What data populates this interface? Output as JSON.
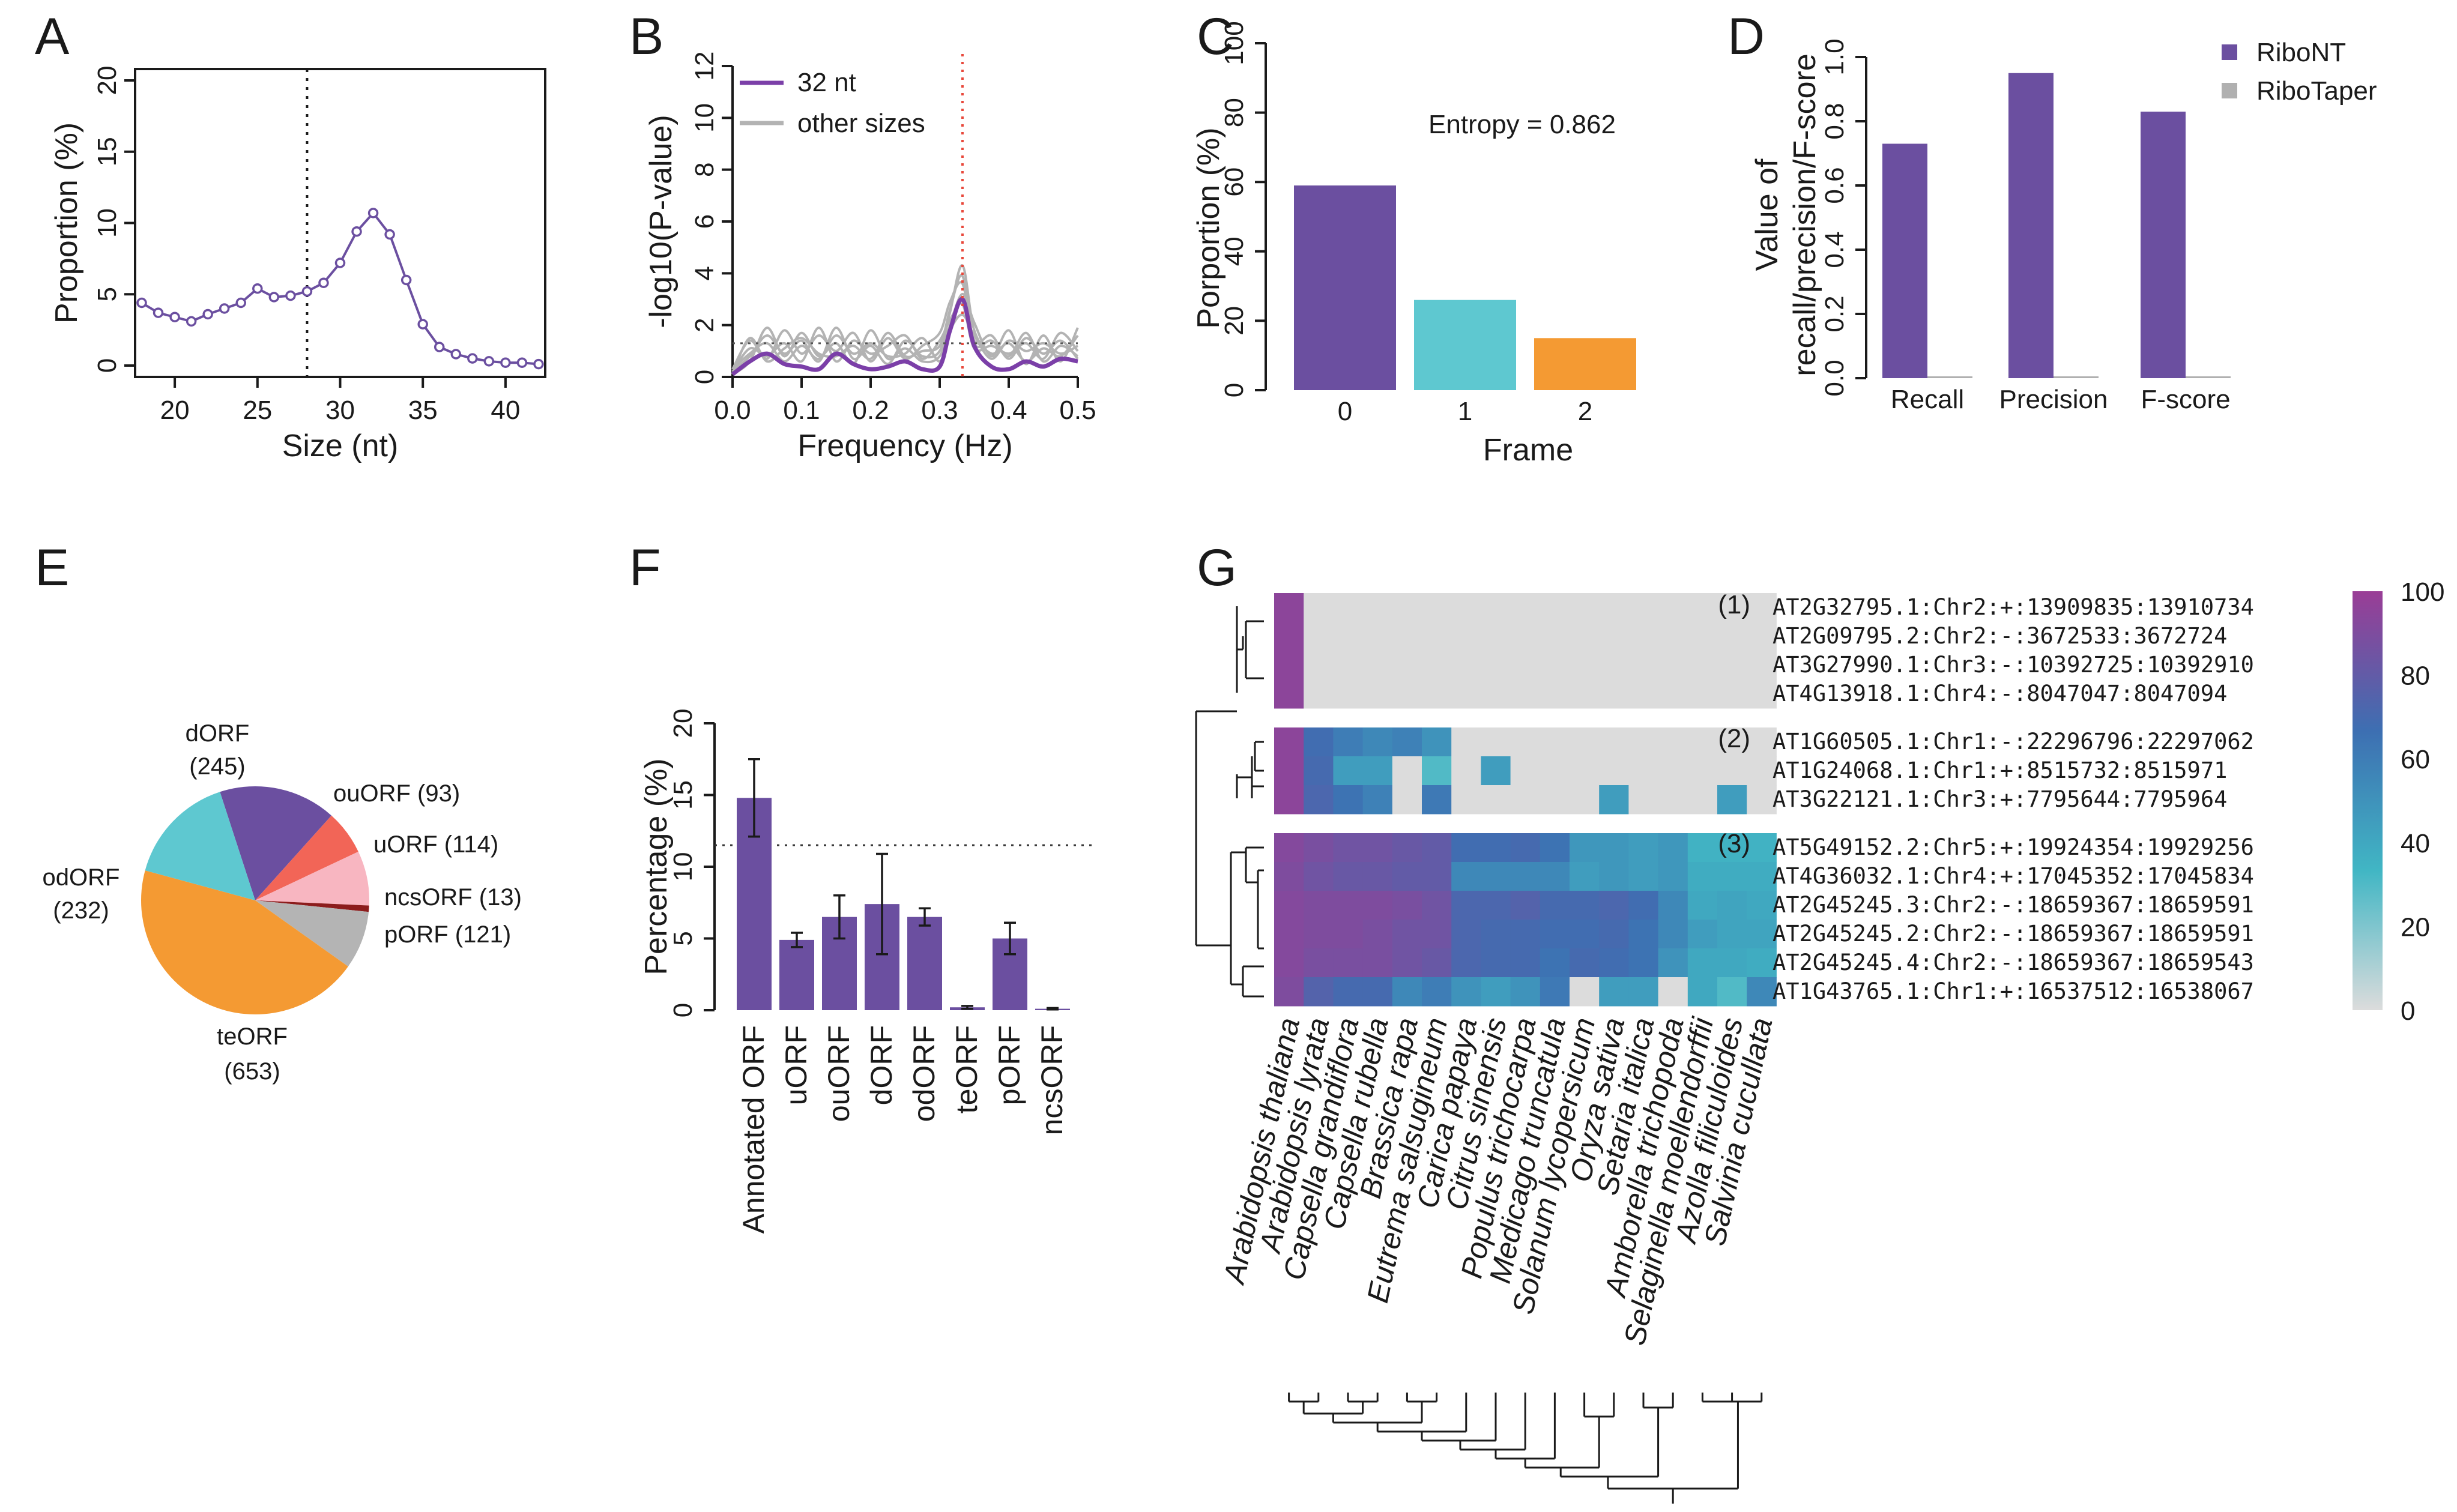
{
  "panel_letters": [
    "A",
    "B",
    "C",
    "D",
    "E",
    "F",
    "G"
  ],
  "chart_data": [
    {
      "panel": "A",
      "type": "line",
      "xlabel": "Size (nt)",
      "ylabel": "Proportion (%)",
      "xlim": [
        18,
        42
      ],
      "ylim": [
        0,
        20
      ],
      "xticks": [
        "20",
        "25",
        "30",
        "35",
        "40"
      ],
      "yticks": [
        "0",
        "5",
        "10",
        "15",
        "20"
      ],
      "x": [
        18,
        19,
        20,
        21,
        22,
        23,
        24,
        25,
        26,
        27,
        28,
        29,
        30,
        31,
        32,
        33,
        34,
        35,
        36,
        37,
        38,
        39,
        40,
        41,
        42
      ],
      "values": [
        4.4,
        3.7,
        3.4,
        3.1,
        3.6,
        4.0,
        4.4,
        5.4,
        4.8,
        4.9,
        5.2,
        5.8,
        7.2,
        9.4,
        10.7,
        9.2,
        6.0,
        2.9,
        1.3,
        0.8,
        0.5,
        0.3,
        0.2,
        0.2,
        0.1
      ],
      "vline": 28,
      "color": "#6b4fa0"
    },
    {
      "panel": "B",
      "type": "line",
      "xlabel": "Frequency (Hz)",
      "ylabel": "-log10(P-value)",
      "xlim": [
        0,
        0.5
      ],
      "ylim": [
        0,
        12
      ],
      "xticks": [
        "0.0",
        "0.1",
        "0.2",
        "0.3",
        "0.4",
        "0.5"
      ],
      "yticks": [
        "0",
        "2",
        "4",
        "6",
        "8",
        "10",
        "12"
      ],
      "legend": [
        "32 nt",
        "other sizes"
      ],
      "main_series": {
        "name": "32 nt",
        "x": [
          0.0,
          0.025,
          0.05,
          0.075,
          0.1,
          0.125,
          0.15,
          0.175,
          0.2,
          0.225,
          0.25,
          0.275,
          0.3,
          0.315,
          0.333,
          0.35,
          0.375,
          0.4,
          0.425,
          0.45,
          0.475,
          0.5
        ],
        "values": [
          0.1,
          0.6,
          0.9,
          0.5,
          0.4,
          0.3,
          0.9,
          0.5,
          0.3,
          0.4,
          0.6,
          0.3,
          0.4,
          1.8,
          3.0,
          1.2,
          0.4,
          0.3,
          0.6,
          0.4,
          0.7,
          0.6
        ]
      },
      "other_series": [
        {
          "values": [
            0.2,
            0.8,
            1.6,
            0.9,
            1.4,
            0.6,
            1.9,
            0.7,
            1.2,
            0.5,
            1.4,
            0.8,
            1.0,
            2.5,
            4.3,
            1.8,
            0.9,
            1.3,
            0.6,
            1.1,
            0.8,
            1.6
          ]
        },
        {
          "values": [
            0.3,
            1.4,
            0.7,
            1.8,
            0.9,
            1.6,
            1.0,
            1.7,
            0.6,
            1.5,
            0.7,
            1.2,
            1.7,
            2.9,
            3.6,
            1.4,
            1.6,
            0.7,
            1.5,
            0.9,
            1.4,
            0.7
          ]
        },
        {
          "values": [
            0.1,
            0.6,
            1.9,
            0.8,
            1.7,
            0.8,
            1.3,
            0.5,
            1.8,
            0.7,
            1.1,
            0.6,
            0.8,
            2.0,
            3.2,
            2.1,
            0.8,
            1.8,
            0.5,
            1.6,
            0.6,
            1.9
          ]
        },
        {
          "values": [
            0.2,
            1.1,
            0.8,
            1.3,
            0.6,
            1.9,
            0.6,
            1.4,
            0.9,
            1.2,
            1.6,
            0.7,
            1.4,
            2.2,
            2.8,
            1.1,
            1.2,
            0.9,
            1.3,
            0.7,
            1.7,
            1.0
          ]
        },
        {
          "values": [
            0.3,
            0.9,
            1.3,
            0.6,
            1.2,
            0.7,
            1.6,
            0.9,
            1.3,
            0.8,
            0.9,
            1.5,
            0.6,
            1.8,
            2.4,
            1.6,
            0.7,
            1.4,
            1.0,
            1.3,
            0.9,
            1.2
          ]
        },
        {
          "values": [
            0.1,
            1.5,
            0.6,
            1.1,
            1.5,
            0.9,
            0.8,
            1.2,
            0.7,
            1.7,
            0.8,
            1.0,
            1.2,
            2.6,
            3.9,
            1.3,
            1.4,
            0.8,
            1.7,
            0.6,
            1.2,
            0.8
          ]
        }
      ],
      "hline": 1.3,
      "vline": 0.333,
      "colors": {
        "main": "#7b3fa8",
        "other": "#b3b3b3",
        "vline": "#e8483b"
      }
    },
    {
      "panel": "C",
      "type": "bar",
      "xlabel": "Frame",
      "ylabel": "Porportion (%)",
      "categories": [
        "0",
        "1",
        "2"
      ],
      "values": [
        59,
        26,
        15
      ],
      "ylim": [
        0,
        100
      ],
      "yticks": [
        "0",
        "20",
        "40",
        "60",
        "80",
        "100"
      ],
      "annotation": "Entropy = 0.862",
      "colors": [
        "#6b4fa0",
        "#5ec8d0",
        "#f49a33"
      ]
    },
    {
      "panel": "D",
      "type": "bar",
      "ylabel_line1": "Value of",
      "ylabel_line2": "recall/precision/F-score",
      "categories": [
        "Recall",
        "Precision",
        "F-score"
      ],
      "series": [
        {
          "name": "RiboNT",
          "values": [
            0.73,
            0.95,
            0.83
          ],
          "color": "#6b4fa0"
        },
        {
          "name": "RiboTaper",
          "values": [
            0.0,
            0.0,
            0.0
          ],
          "color": "#b0b0b0"
        }
      ],
      "ylim": [
        0,
        1.0
      ],
      "yticks": [
        "0.0",
        "0.2",
        "0.4",
        "0.6",
        "0.8",
        "1.0"
      ],
      "legend": [
        "RiboNT",
        "RiboTaper"
      ]
    },
    {
      "panel": "E",
      "type": "pie",
      "slices": [
        {
          "label": "dORF",
          "count": "(245)",
          "value": 245,
          "color": "#6b4fa0"
        },
        {
          "label": "ouORF",
          "count": "(93)",
          "value": 93,
          "color": "#f26557"
        },
        {
          "label": "uORF",
          "count": "(114)",
          "value": 114,
          "color": "#f8b6c1"
        },
        {
          "label": "ncsORF",
          "count": "(13)",
          "value": 13,
          "color": "#8c1c1c"
        },
        {
          "label": "pORF",
          "count": "(121)",
          "value": 121,
          "color": "#b4b4b4"
        },
        {
          "label": "teORF",
          "count": "(653)",
          "value": 653,
          "color": "#f49a33"
        },
        {
          "label": "odORF",
          "count": "(232)",
          "value": 232,
          "color": "#5ec8d0"
        }
      ]
    },
    {
      "panel": "F",
      "type": "bar",
      "ylabel": "Percentage (%)",
      "categories": [
        "Annotated ORF",
        "uORF",
        "ouORF",
        "dORF",
        "odORF",
        "teORF",
        "pORF",
        "ncsORF"
      ],
      "values": [
        14.8,
        4.9,
        6.5,
        7.4,
        6.5,
        0.2,
        5.0,
        0.1
      ],
      "errors": [
        2.7,
        0.5,
        1.5,
        3.5,
        0.6,
        0.1,
        1.1,
        0.05
      ],
      "hline": 11.5,
      "ylim": [
        0,
        20
      ],
      "yticks": [
        "0",
        "5",
        "10",
        "15",
        "20"
      ],
      "color": "#6b4fa0"
    },
    {
      "panel": "G",
      "type": "heatmap",
      "rows": [
        "AT2G32795.1:Chr2:+:13909835:13910734",
        "AT2G09795.2:Chr2:-:3672533:3672724",
        "AT3G27990.1:Chr3:-:10392725:10392910",
        "AT4G13918.1:Chr4:-:8047047:8047094",
        "AT1G60505.1:Chr1:-:22296796:22297062",
        "AT1G24068.1:Chr1:+:8515732:8515971",
        "AT3G22121.1:Chr3:+:7795644:7795964",
        "AT5G49152.2:Chr5:+:19924354:19929256",
        "AT4G36032.1:Chr4:+:17045352:17045834",
        "AT2G45245.3:Chr2:-:18659367:18659591",
        "AT2G45245.2:Chr2:-:18659367:18659591",
        "AT2G45245.4:Chr2:-:18659367:18659543",
        "AT1G43765.1:Chr1:+:16537512:16538067"
      ],
      "columns": [
        "Arabidopsis thaliana",
        "Arabidopsis lyrata",
        "Capsella grandiflora",
        "Capsella rubella",
        "Brassica rapa",
        "Eutrema salsugineum",
        "Carica papaya",
        "Citrus sinensis",
        "Populus trichocarpa",
        "Medicago truncatula",
        "Solanum lycopersicum",
        "Oryza sativa",
        "Setaria italica",
        "Amborella trichopoda",
        "Selaginella moellendorffii",
        "Azolla filiculoides",
        "Salvinia cucullata"
      ],
      "groups": [
        {
          "label": "(1)",
          "rows": [
            0,
            3
          ]
        },
        {
          "label": "(2)",
          "rows": [
            4,
            6
          ]
        },
        {
          "label": "(3)",
          "rows": [
            7,
            12
          ]
        }
      ],
      "values": [
        [
          95,
          0,
          0,
          0,
          0,
          0,
          0,
          0,
          0,
          0,
          0,
          0,
          0,
          0,
          0,
          0,
          0
        ],
        [
          95,
          0,
          0,
          0,
          0,
          0,
          0,
          0,
          0,
          0,
          0,
          0,
          0,
          0,
          0,
          0,
          0
        ],
        [
          95,
          0,
          0,
          0,
          0,
          0,
          0,
          0,
          0,
          0,
          0,
          0,
          0,
          0,
          0,
          0,
          0
        ],
        [
          95,
          0,
          0,
          0,
          0,
          0,
          0,
          0,
          0,
          0,
          0,
          0,
          0,
          0,
          0,
          0,
          0
        ],
        [
          95,
          68,
          60,
          55,
          58,
          50,
          0,
          0,
          0,
          0,
          0,
          0,
          0,
          0,
          0,
          0,
          0
        ],
        [
          95,
          70,
          45,
          45,
          0,
          30,
          0,
          45,
          0,
          0,
          0,
          0,
          0,
          0,
          0,
          0,
          0
        ],
        [
          95,
          72,
          65,
          58,
          0,
          62,
          0,
          0,
          0,
          0,
          0,
          45,
          0,
          0,
          0,
          45,
          0
        ],
        [
          92,
          88,
          85,
          85,
          82,
          80,
          68,
          68,
          70,
          65,
          48,
          48,
          45,
          48,
          35,
          35,
          35
        ],
        [
          90,
          85,
          82,
          82,
          80,
          80,
          55,
          55,
          55,
          55,
          45,
          48,
          45,
          48,
          38,
          38,
          38
        ],
        [
          92,
          90,
          90,
          90,
          88,
          85,
          72,
          72,
          75,
          70,
          70,
          72,
          68,
          55,
          40,
          42,
          40
        ],
        [
          92,
          90,
          90,
          88,
          85,
          85,
          72,
          70,
          70,
          68,
          68,
          70,
          65,
          55,
          45,
          42,
          42
        ],
        [
          92,
          88,
          88,
          88,
          85,
          82,
          72,
          70,
          70,
          65,
          70,
          68,
          65,
          50,
          40,
          40,
          38
        ],
        [
          90,
          75,
          70,
          70,
          55,
          60,
          50,
          45,
          50,
          62,
          0,
          45,
          45,
          0,
          40,
          30,
          55
        ]
      ],
      "colorbar": {
        "min": 0,
        "max": 100,
        "ticks": [
          "0",
          "20",
          "40",
          "60",
          "80",
          "100"
        ],
        "colors": [
          "#dcdcdc",
          "#41b6c4",
          "#3d6fb2",
          "#9a3d96"
        ]
      }
    }
  ]
}
